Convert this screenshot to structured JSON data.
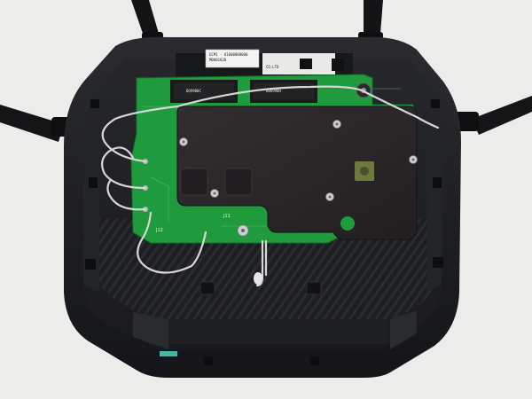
{
  "photo": {
    "sticker_lines": [
      "ECM1 - 81000000000",
      "M0001020",
      "CO.LTD"
    ],
    "relay_labels": [
      "DQ9900C",
      "D06990H"
    ],
    "pcb_markings": [
      "J12",
      "J11"
    ]
  },
  "colors": {
    "background": "#ececea",
    "housing": "#1b1c1f",
    "pcb": "#1f9a3c",
    "shield_plate": "#2a2527",
    "antenna": "#141416",
    "cable": "#d6d6d6"
  }
}
